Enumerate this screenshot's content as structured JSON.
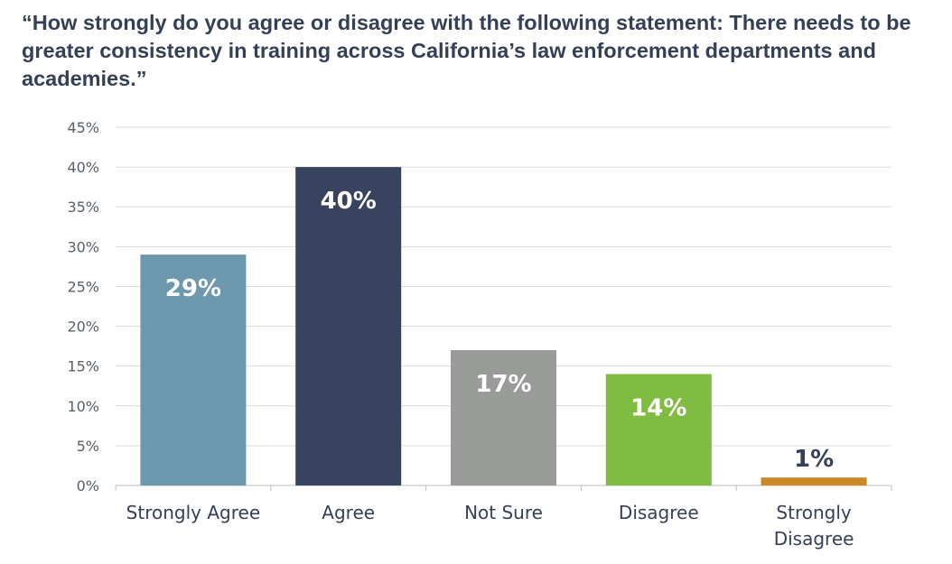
{
  "chart_data": {
    "type": "bar",
    "title": "“How strongly do you agree or disagree with the following statement: There needs to be greater consistency in training across California’s law enforcement departments and academies.”",
    "xlabel": "",
    "ylabel": "",
    "categories": [
      "Strongly Agree",
      "Agree",
      "Not Sure",
      "Disagree",
      "Strongly Disagree"
    ],
    "values": [
      29,
      40,
      17,
      14,
      1
    ],
    "data_labels": [
      "29%",
      "40%",
      "17%",
      "14%",
      "1%"
    ],
    "bar_colors": [
      "#6c99ae",
      "#384360",
      "#989b97",
      "#80bc41",
      "#cc8826"
    ],
    "label_colors": [
      "#ffffff",
      "#ffffff",
      "#ffffff",
      "#ffffff",
      "#353f58"
    ],
    "ylim": [
      0,
      45
    ],
    "yticks": [
      0,
      5,
      10,
      15,
      20,
      25,
      30,
      35,
      40,
      45
    ],
    "ytick_labels": [
      "0%",
      "5%",
      "10%",
      "15%",
      "20%",
      "25%",
      "30%",
      "35%",
      "40%",
      "45%"
    ],
    "grid": true,
    "legend": "none"
  }
}
